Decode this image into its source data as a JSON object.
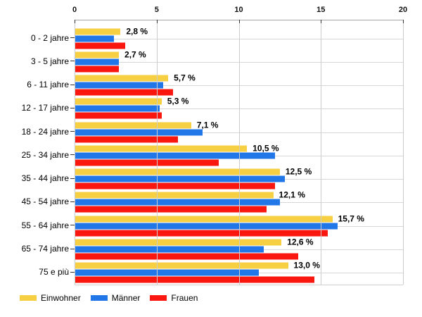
{
  "chart_data": {
    "type": "bar",
    "orientation": "horizontal",
    "title": "",
    "xlabel": "",
    "ylabel": "",
    "xlim": [
      0,
      20
    ],
    "x_ticks": [
      "0",
      "5",
      "10",
      "15",
      "20"
    ],
    "grid": true,
    "legend_position": "bottom",
    "categories": [
      "0 - 2 jahre",
      "3 - 5 jahre",
      "6 - 11 jahre",
      "12 - 17 jahre",
      "18 - 24 jahre",
      "25 - 34 jahre",
      "35 - 44 jahre",
      "45 - 54 jahre",
      "55 - 64 jahre",
      "65 - 74 jahre",
      "75 e più"
    ],
    "series": [
      {
        "name": "Einwohner",
        "color": "#F7CF43",
        "values": [
          2.8,
          2.7,
          5.7,
          5.3,
          7.1,
          10.5,
          12.5,
          12.1,
          15.7,
          12.6,
          13.0
        ]
      },
      {
        "name": "Männer",
        "color": "#2277E8",
        "values": [
          2.4,
          2.7,
          5.4,
          5.2,
          7.8,
          12.2,
          12.8,
          12.5,
          16.0,
          11.5,
          11.2
        ]
      },
      {
        "name": "Frauen",
        "color": "#FA170F",
        "values": [
          3.1,
          2.7,
          6.0,
          5.3,
          6.3,
          8.8,
          12.2,
          11.7,
          15.4,
          13.6,
          14.6
        ]
      }
    ],
    "value_labels": [
      "2,8 %",
      "2,7 %",
      "5,7 %",
      "5,3 %",
      "7,1 %",
      "10,5 %",
      "12,5 %",
      "12,1 %",
      "15,7 %",
      "12,6 %",
      "13,0 %"
    ]
  },
  "colors": {
    "grid_vertical": "#cccccc",
    "grid_horizontal": "#d6d6d6",
    "axis_line": "#a6a6a6",
    "tick": "#333333",
    "text": "#000000"
  }
}
